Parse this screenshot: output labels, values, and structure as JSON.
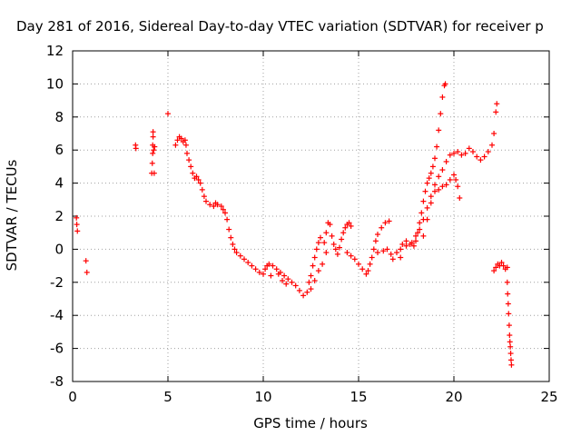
{
  "chart_data": {
    "type": "scatter",
    "title": "Day 281 of 2016, Sidereal Day-to-day VTEC variation (SDTVAR) for receiver p",
    "xlabel": "GPS time / hours",
    "ylabel": "SDTVAR / TECUs",
    "xlim": [
      0,
      25
    ],
    "ylim": [
      -8,
      12
    ],
    "x_ticks": [
      0,
      5,
      10,
      15,
      20,
      25
    ],
    "y_ticks": [
      -8,
      -6,
      -4,
      -2,
      0,
      2,
      4,
      6,
      8,
      10,
      12
    ],
    "grid": true,
    "marker": "+",
    "color": "#ff0000",
    "series": [
      {
        "name": "",
        "points": [
          [
            0.2,
            1.9
          ],
          [
            0.22,
            1.5
          ],
          [
            0.25,
            1.1
          ],
          [
            0.7,
            -0.7
          ],
          [
            0.75,
            -1.4
          ],
          [
            3.3,
            6.3
          ],
          [
            3.32,
            6.1
          ],
          [
            4.15,
            4.6
          ],
          [
            4.18,
            5.2
          ],
          [
            4.2,
            5.8
          ],
          [
            4.2,
            6.3
          ],
          [
            4.22,
            6.8
          ],
          [
            4.22,
            7.1
          ],
          [
            4.25,
            6.0
          ],
          [
            4.28,
            4.6
          ],
          [
            4.3,
            6.2
          ],
          [
            5.0,
            8.2
          ],
          [
            5.4,
            6.3
          ],
          [
            5.5,
            6.6
          ],
          [
            5.6,
            6.8
          ],
          [
            5.7,
            6.7
          ],
          [
            5.8,
            6.5
          ],
          [
            5.9,
            6.6
          ],
          [
            5.95,
            6.3
          ],
          [
            6.0,
            5.8
          ],
          [
            6.1,
            5.4
          ],
          [
            6.2,
            5.0
          ],
          [
            6.3,
            4.6
          ],
          [
            6.4,
            4.3
          ],
          [
            6.5,
            4.4
          ],
          [
            6.6,
            4.2
          ],
          [
            6.7,
            4.0
          ],
          [
            6.8,
            3.6
          ],
          [
            6.9,
            3.2
          ],
          [
            7.0,
            2.9
          ],
          [
            7.2,
            2.7
          ],
          [
            7.4,
            2.6
          ],
          [
            7.5,
            2.8
          ],
          [
            7.6,
            2.7
          ],
          [
            7.8,
            2.6
          ],
          [
            7.9,
            2.4
          ],
          [
            8.0,
            2.2
          ],
          [
            8.1,
            1.8
          ],
          [
            8.2,
            1.2
          ],
          [
            8.3,
            0.7
          ],
          [
            8.4,
            0.3
          ],
          [
            8.5,
            0.0
          ],
          [
            8.6,
            -0.2
          ],
          [
            8.8,
            -0.4
          ],
          [
            9.0,
            -0.6
          ],
          [
            9.2,
            -0.8
          ],
          [
            9.4,
            -1.0
          ],
          [
            9.6,
            -1.2
          ],
          [
            9.8,
            -1.4
          ],
          [
            10.0,
            -1.5
          ],
          [
            10.1,
            -1.2
          ],
          [
            10.2,
            -1.0
          ],
          [
            10.3,
            -0.9
          ],
          [
            10.5,
            -1.0
          ],
          [
            10.7,
            -1.2
          ],
          [
            10.9,
            -1.4
          ],
          [
            11.1,
            -1.6
          ],
          [
            11.3,
            -1.8
          ],
          [
            11.5,
            -2.0
          ],
          [
            11.7,
            -2.2
          ],
          [
            11.9,
            -2.5
          ],
          [
            12.1,
            -2.8
          ],
          [
            12.3,
            -2.6
          ],
          [
            12.4,
            -2.0
          ],
          [
            12.5,
            -1.6
          ],
          [
            12.6,
            -1.0
          ],
          [
            12.7,
            -0.5
          ],
          [
            12.8,
            0.0
          ],
          [
            12.9,
            0.4
          ],
          [
            13.0,
            0.7
          ],
          [
            10.4,
            -1.6
          ],
          [
            10.8,
            -1.5
          ],
          [
            11.2,
            -2.1
          ],
          [
            11.0,
            -1.9
          ],
          [
            12.5,
            -2.4
          ],
          [
            12.7,
            -1.9
          ],
          [
            12.9,
            -1.3
          ],
          [
            13.1,
            -0.9
          ],
          [
            13.3,
            -0.2
          ],
          [
            13.2,
            0.4
          ],
          [
            13.3,
            1.0
          ],
          [
            13.4,
            1.6
          ],
          [
            13.5,
            1.5
          ],
          [
            13.6,
            0.8
          ],
          [
            13.7,
            0.3
          ],
          [
            13.8,
            0.0
          ],
          [
            13.9,
            -0.3
          ],
          [
            14.0,
            0.1
          ],
          [
            14.1,
            0.6
          ],
          [
            14.2,
            1.0
          ],
          [
            14.3,
            1.3
          ],
          [
            14.4,
            1.5
          ],
          [
            14.5,
            1.6
          ],
          [
            14.6,
            1.4
          ],
          [
            14.4,
            -0.2
          ],
          [
            14.6,
            -0.4
          ],
          [
            14.8,
            -0.6
          ],
          [
            15.0,
            -0.9
          ],
          [
            15.2,
            -1.2
          ],
          [
            15.4,
            -1.5
          ],
          [
            15.5,
            -1.3
          ],
          [
            15.6,
            -0.9
          ],
          [
            15.7,
            -0.5
          ],
          [
            15.8,
            0.0
          ],
          [
            15.9,
            0.5
          ],
          [
            16.0,
            0.9
          ],
          [
            16.2,
            1.3
          ],
          [
            16.4,
            1.6
          ],
          [
            16.6,
            1.7
          ],
          [
            16.0,
            -0.2
          ],
          [
            16.3,
            -0.1
          ],
          [
            16.5,
            0.0
          ],
          [
            16.7,
            -0.3
          ],
          [
            16.8,
            -0.6
          ],
          [
            17.0,
            -0.2
          ],
          [
            17.2,
            0.0
          ],
          [
            17.3,
            0.3
          ],
          [
            17.5,
            0.5
          ],
          [
            17.7,
            0.3
          ],
          [
            17.9,
            0.2
          ],
          [
            18.0,
            0.5
          ],
          [
            18.1,
            1.0
          ],
          [
            18.2,
            1.6
          ],
          [
            18.3,
            2.2
          ],
          [
            18.4,
            2.9
          ],
          [
            18.5,
            3.5
          ],
          [
            18.6,
            4.0
          ],
          [
            18.7,
            4.3
          ],
          [
            18.8,
            4.6
          ],
          [
            18.9,
            5.0
          ],
          [
            19.0,
            5.5
          ],
          [
            19.1,
            6.2
          ],
          [
            19.2,
            7.2
          ],
          [
            19.3,
            8.2
          ],
          [
            19.4,
            9.2
          ],
          [
            19.5,
            9.9
          ],
          [
            19.55,
            10.0
          ],
          [
            17.2,
            -0.5
          ],
          [
            17.5,
            0.2
          ],
          [
            17.8,
            0.4
          ],
          [
            18.0,
            0.8
          ],
          [
            18.2,
            1.2
          ],
          [
            18.4,
            1.8
          ],
          [
            18.6,
            2.5
          ],
          [
            18.8,
            3.2
          ],
          [
            19.0,
            3.9
          ],
          [
            19.2,
            4.4
          ],
          [
            19.4,
            4.8
          ],
          [
            19.6,
            5.3
          ],
          [
            19.8,
            5.7
          ],
          [
            20.0,
            5.8
          ],
          [
            20.2,
            5.9
          ],
          [
            20.4,
            5.7
          ],
          [
            20.6,
            5.8
          ],
          [
            20.8,
            6.1
          ],
          [
            21.0,
            5.9
          ],
          [
            21.2,
            5.6
          ],
          [
            21.4,
            5.4
          ],
          [
            21.6,
            5.6
          ],
          [
            21.8,
            5.9
          ],
          [
            22.0,
            6.3
          ],
          [
            22.1,
            7.0
          ],
          [
            22.2,
            8.3
          ],
          [
            22.25,
            8.8
          ],
          [
            18.4,
            0.8
          ],
          [
            18.6,
            1.8
          ],
          [
            18.8,
            2.8
          ],
          [
            19.0,
            3.5
          ],
          [
            19.2,
            3.6
          ],
          [
            19.4,
            3.8
          ],
          [
            19.6,
            3.9
          ],
          [
            19.8,
            4.2
          ],
          [
            20.0,
            4.5
          ],
          [
            20.1,
            4.2
          ],
          [
            20.2,
            3.8
          ],
          [
            20.3,
            3.1
          ],
          [
            22.1,
            -1.3
          ],
          [
            22.2,
            -1.1
          ],
          [
            22.3,
            -0.9
          ],
          [
            22.4,
            -1.0
          ],
          [
            22.5,
            -0.8
          ],
          [
            22.6,
            -1.0
          ],
          [
            22.7,
            -1.2
          ],
          [
            22.8,
            -1.1
          ],
          [
            22.8,
            -2.0
          ],
          [
            22.82,
            -2.7
          ],
          [
            22.85,
            -3.3
          ],
          [
            22.87,
            -3.9
          ],
          [
            22.9,
            -4.6
          ],
          [
            22.92,
            -5.2
          ],
          [
            22.94,
            -5.6
          ],
          [
            22.96,
            -5.9
          ],
          [
            22.98,
            -6.3
          ],
          [
            23.0,
            -6.7
          ],
          [
            23.02,
            -7.0
          ]
        ]
      }
    ]
  }
}
